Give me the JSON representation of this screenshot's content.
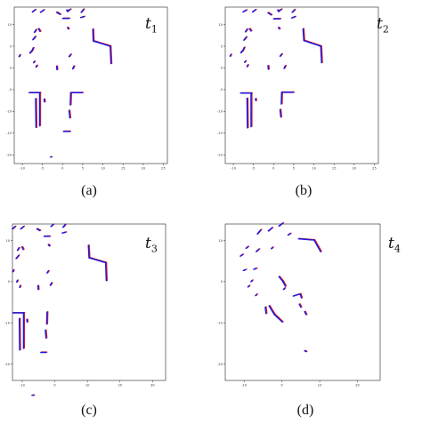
{
  "chart_data": [
    {
      "type": "scatter",
      "panel_label": "t",
      "panel_label_sub": "1",
      "caption": "(a)",
      "xticks": [
        -10,
        -5,
        0,
        5,
        10,
        15,
        20,
        25
      ],
      "yticks": [
        10,
        5,
        0,
        -5,
        -10,
        -15,
        -20
      ],
      "xlim": [
        -12,
        26
      ],
      "ylim": [
        -22,
        14
      ],
      "colors": {
        "series1": "#e41a1c",
        "series2": "#1a1ae6"
      },
      "segments": [
        [
          -7.5,
          12.9,
          -6.8,
          13.4
        ],
        [
          -5.5,
          12.8,
          -4.6,
          13.4
        ],
        [
          -1.5,
          12.8,
          -0.6,
          12.3
        ],
        [
          1.3,
          13.1,
          1.9,
          13.5
        ],
        [
          0,
          11.4,
          1.6,
          11.4
        ],
        [
          4.5,
          11.6,
          5.3,
          11.8
        ],
        [
          4.6,
          12.8,
          5.2,
          13.5
        ],
        [
          -7.0,
          8.2,
          -6.6,
          8.8
        ],
        [
          -6.0,
          9.0,
          -5.6,
          8.4
        ],
        [
          -7.4,
          6.5,
          -6.8,
          7.2
        ],
        [
          1.2,
          9.3,
          1.5,
          8.9
        ],
        [
          7.5,
          8.9,
          7.6,
          6.2
        ],
        [
          7.6,
          6.2,
          11.8,
          5.0
        ],
        [
          11.8,
          5.0,
          12.0,
          1.0
        ],
        [
          -8.1,
          3.4,
          -7.9,
          3.8
        ],
        [
          -7.2,
          1.2,
          -7.0,
          1.5
        ],
        [
          -6.6,
          0.2,
          -6.4,
          0.6
        ],
        [
          1.6,
          2.6,
          2.0,
          3.1
        ],
        [
          2.5,
          -0.2,
          2.8,
          0.4
        ],
        [
          -8.3,
          -5.7,
          -5.6,
          -5.7
        ],
        [
          -5.7,
          -5.7,
          -5.7,
          -13.3
        ],
        [
          -6.7,
          -7.1,
          -6.6,
          -13.7
        ],
        [
          2.0,
          -5.7,
          4.9,
          -5.7
        ],
        [
          2.0,
          -5.7,
          1.9,
          -8.5
        ],
        [
          1.6,
          -9.8,
          1.8,
          -11.5
        ],
        [
          0.2,
          -14.6,
          1.8,
          -14.6
        ],
        [
          -4.6,
          -7.2,
          -4.5,
          -7.8
        ],
        [
          -1.5,
          0.4,
          -1.4,
          -0.4
        ],
        [
          -10.8,
          2.6,
          -10.6,
          3.0
        ],
        [
          -7.7,
          3.8,
          -7.3,
          4.6
        ],
        [
          1.0,
          13.3,
          1.3,
          12.9
        ],
        [
          -3.0,
          -20.5,
          -2.8,
          -20.5
        ]
      ]
    },
    {
      "type": "scatter",
      "panel_label": "t",
      "panel_label_sub": "2",
      "caption": "(b)",
      "xticks": [
        -10,
        -5,
        0,
        5,
        10,
        15,
        20,
        25
      ],
      "yticks": [
        10,
        5,
        0,
        -5,
        -10,
        -15,
        -20
      ],
      "xlim": [
        -12,
        26
      ],
      "ylim": [
        -22,
        14
      ],
      "colors": {
        "series1": "#e41a1c",
        "series2": "#1a1ae6"
      },
      "segments": [
        [
          -7.6,
          12.9,
          -6.8,
          13.3
        ],
        [
          -5.2,
          12.9,
          -4.5,
          13.4
        ],
        [
          -1.4,
          12.7,
          -0.6,
          12.2
        ],
        [
          1.3,
          13.1,
          1.9,
          13.5
        ],
        [
          0,
          11.3,
          1.6,
          11.3
        ],
        [
          4.5,
          11.5,
          5.3,
          11.8
        ],
        [
          4.6,
          12.8,
          5.2,
          13.4
        ],
        [
          -7.0,
          8.3,
          -6.6,
          8.9
        ],
        [
          -6.0,
          9.0,
          -5.6,
          8.5
        ],
        [
          -7.4,
          6.4,
          -6.8,
          7.1
        ],
        [
          1.2,
          9.3,
          1.5,
          8.9
        ],
        [
          7.3,
          9.0,
          7.5,
          6.3
        ],
        [
          7.5,
          6.3,
          11.7,
          5.0
        ],
        [
          11.7,
          5.0,
          11.9,
          1.2
        ],
        [
          -8.1,
          3.5,
          -7.9,
          3.9
        ],
        [
          -7.2,
          1.3,
          -7.0,
          1.6
        ],
        [
          -6.6,
          0.3,
          -6.4,
          0.7
        ],
        [
          1.6,
          2.7,
          2.0,
          3.2
        ],
        [
          2.6,
          -0.1,
          2.9,
          0.5
        ],
        [
          -8.2,
          -5.8,
          -5.5,
          -5.8
        ],
        [
          -5.6,
          -5.8,
          -5.6,
          -13.5
        ],
        [
          -6.6,
          -7.0,
          -6.5,
          -13.9
        ],
        [
          2.0,
          -5.6,
          4.9,
          -5.6
        ],
        [
          2.0,
          -5.6,
          1.9,
          -8.3
        ],
        [
          1.6,
          -9.6,
          1.8,
          -11.3
        ],
        [
          -4.5,
          -7.1,
          -4.4,
          -7.6
        ],
        [
          -1.4,
          0.5,
          -1.3,
          -0.3
        ],
        [
          -10.8,
          2.7,
          -10.6,
          3.1
        ],
        [
          -7.7,
          3.9,
          -7.3,
          4.7
        ],
        [
          1.0,
          13.3,
          1.3,
          12.9
        ]
      ]
    },
    {
      "type": "scatter",
      "panel_label": "t",
      "panel_label_sub": "3",
      "caption": "(c)",
      "xticks": [
        -10,
        0,
        10,
        20,
        30
      ],
      "yticks": [
        10,
        0,
        -10,
        -20
      ],
      "xlim": [
        -13,
        34
      ],
      "ylim": [
        -24,
        14
      ],
      "colors": {
        "series1": "#e41a1c",
        "series2": "#1a1ae6"
      },
      "segments": [
        [
          -13.0,
          12.8,
          -12.2,
          13.4
        ],
        [
          -10.5,
          12.8,
          -9.6,
          13.4
        ],
        [
          -5.5,
          12.8,
          -4.6,
          12.4
        ],
        [
          -1.2,
          13.4,
          -0.5,
          13.9
        ],
        [
          -3.3,
          11.0,
          -1.6,
          11.0
        ],
        [
          2.3,
          11.8,
          3.3,
          12.0
        ],
        [
          2.5,
          13.2,
          3.2,
          13.9
        ],
        [
          -11.5,
          7.6,
          -11.0,
          8.2
        ],
        [
          -10.1,
          8.4,
          -9.7,
          7.8
        ],
        [
          -11.9,
          5.6,
          -11.1,
          6.4
        ],
        [
          -2.0,
          9.0,
          -1.6,
          8.6
        ],
        [
          10.3,
          8.8,
          10.5,
          5.8
        ],
        [
          10.5,
          5.8,
          15.6,
          4.6
        ],
        [
          15.6,
          4.6,
          15.8,
          0.2
        ],
        [
          -12.9,
          2.4,
          -12.7,
          2.9
        ],
        [
          -11.7,
          -0.1,
          -11.5,
          0.3
        ],
        [
          -10.8,
          -1.4,
          -10.6,
          -0.9
        ],
        [
          -2.4,
          2.1,
          -2.0,
          2.6
        ],
        [
          -1.4,
          -0.9,
          -1.0,
          -0.3
        ],
        [
          -12.9,
          -7.6,
          -9.5,
          -7.6
        ],
        [
          -9.6,
          -7.6,
          -9.6,
          -16.2
        ],
        [
          -10.9,
          -9.0,
          -10.8,
          -16.6
        ],
        [
          -2.4,
          -7.4,
          -2.5,
          -10.3
        ],
        [
          -2.9,
          -11.8,
          -2.7,
          -13.7
        ],
        [
          -4.3,
          -17.2,
          -2.7,
          -17.2
        ],
        [
          -8.6,
          -9.2,
          -8.5,
          -9.8
        ],
        [
          -5.2,
          -1.0,
          -5.1,
          -1.9
        ],
        [
          -7.0,
          -27.6,
          -6.5,
          -27.6
        ]
      ]
    },
    {
      "type": "scatter",
      "panel_label": "t",
      "panel_label_sub": "4",
      "caption": "(d)",
      "xticks": [
        -10,
        0,
        10,
        20
      ],
      "yticks": [
        10,
        0,
        -10,
        -20
      ],
      "xlim": [
        -15,
        26
      ],
      "ylim": [
        -24,
        14
      ],
      "colors": {
        "series1": "#e41a1c",
        "series2": "#1a1ae6"
      },
      "segments": [
        [
          -6.5,
          11.6,
          -5.6,
          12.6
        ],
        [
          -3.6,
          12.3,
          -2.6,
          13.1
        ],
        [
          -0.8,
          13.5,
          0.2,
          14.2
        ],
        [
          1.6,
          11.3,
          2.2,
          11.7
        ],
        [
          4.4,
          10.4,
          8.5,
          10.1
        ],
        [
          8.5,
          10.1,
          10.3,
          7.2
        ],
        [
          -9.5,
          8.1,
          -9.0,
          8.5
        ],
        [
          -11.0,
          6.2,
          -10.4,
          6.6
        ],
        [
          -6.8,
          7.3,
          -6.1,
          7.9
        ],
        [
          -7.5,
          3.0,
          -6.8,
          3.2
        ],
        [
          -10.2,
          2.7,
          -9.6,
          2.9
        ],
        [
          -0.8,
          1.2,
          0.2,
          0.1
        ],
        [
          0.2,
          0.1,
          0.9,
          -1.1
        ],
        [
          -8.2,
          0.0,
          -7.8,
          0.4
        ],
        [
          -9.0,
          -1.3,
          -8.6,
          -0.9
        ],
        [
          -7.0,
          -3.4,
          -6.6,
          -3.0
        ],
        [
          -3.4,
          -5.9,
          -2.0,
          -8.0
        ],
        [
          -2.0,
          -8.0,
          0.1,
          -9.8
        ],
        [
          3.0,
          -3.5,
          4.8,
          -3.0
        ],
        [
          4.8,
          -3.0,
          5.2,
          -4.0
        ],
        [
          4.6,
          -5.5,
          5.0,
          -6.2
        ],
        [
          6.0,
          -7.3,
          6.4,
          -8.0
        ],
        [
          -4.4,
          -6.2,
          -4.2,
          -7.8
        ],
        [
          0.4,
          -1.9,
          0.8,
          -1.5
        ],
        [
          6.0,
          -16.8,
          6.4,
          -17.0
        ],
        [
          -2.8,
          8.0,
          -2.4,
          8.4
        ]
      ]
    }
  ]
}
